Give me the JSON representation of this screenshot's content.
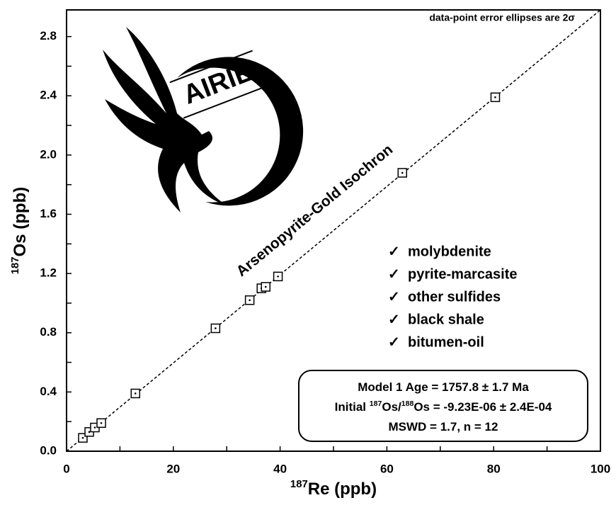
{
  "chart_data": {
    "type": "scatter",
    "annotation": "data-point error ellipses are 2σ",
    "xlabel_parts": [
      {
        "text": "187",
        "sup": true
      },
      {
        "text": "Re (ppb)"
      }
    ],
    "ylabel_parts": [
      {
        "text": "187",
        "sup": true
      },
      {
        "text": "Os (ppb)"
      }
    ],
    "x": [
      3.05,
      4.25,
      5.3,
      6.5,
      12.9,
      27.9,
      34.3,
      36.5,
      37.3,
      39.6,
      62.9,
      80.3
    ],
    "values": [
      0.09,
      0.13,
      0.16,
      0.19,
      0.39,
      0.83,
      1.02,
      1.1,
      1.11,
      1.18,
      1.88,
      2.39
    ],
    "marker_color": "#000000",
    "fit_line": {
      "label": "Arsenopyrite-Gold Isochron",
      "x": [
        0,
        100
      ],
      "values": [
        0,
        2.98
      ],
      "color": "#000000"
    },
    "xlim": [
      0,
      100
    ],
    "xticks": [
      0,
      20,
      40,
      60,
      80,
      100
    ],
    "ylim": [
      0,
      2.98
    ],
    "yticks": [
      {
        "value": 0,
        "label": "0.0"
      },
      0.4,
      0.8,
      1.2,
      1.6,
      {
        "value": 2,
        "label": "2.0"
      },
      2.4,
      2.8
    ],
    "checklist": {
      "mark": "✓",
      "items": [
        "molybdenite",
        "pyrite-marcasite",
        "other sulfides",
        "black shale",
        "bitumen-oil"
      ]
    },
    "result_box": [
      [
        {
          "text": "Model 1 Age = 1757.8 ± 1.7 Ma"
        }
      ],
      [
        {
          "text": "Initial "
        },
        {
          "text": "187",
          "sup": true
        },
        {
          "text": "Os/"
        },
        {
          "text": "188",
          "sup": true
        },
        {
          "text": "Os = -9.23E-06 ± 2.4E-04"
        }
      ],
      [
        {
          "text": "MSWD = 1.7, n = 12"
        }
      ]
    ],
    "logo_text": "AIRIE"
  }
}
